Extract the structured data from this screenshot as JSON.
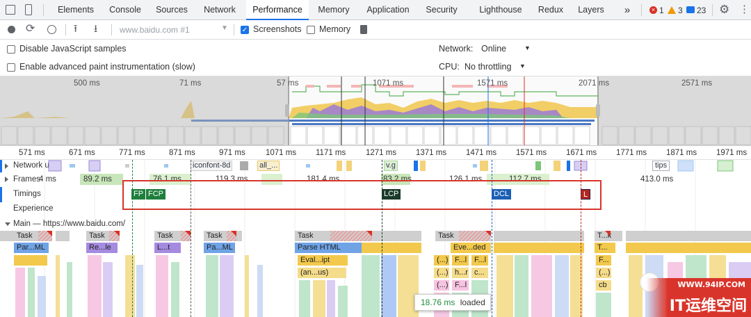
{
  "tabs": [
    "Elements",
    "Console",
    "Sources",
    "Network",
    "Performance",
    "Memory",
    "Application",
    "Security",
    "Lighthouse",
    "Redux",
    "Layers"
  ],
  "active_tab": "Performance",
  "more_tabs": "»",
  "status": {
    "errors": "1",
    "warnings": "3",
    "messages": "23"
  },
  "toolbar": {
    "profile_select": "www.baidu.com #1",
    "screenshots_label": "Screenshots",
    "screenshots_checked": true,
    "memory_label": "Memory",
    "memory_checked": false
  },
  "settings": {
    "disable_js_label": "Disable JavaScript samples",
    "advanced_paint_label": "Enable advanced paint instrumentation (slow)",
    "network_label": "Network:",
    "network_value": "Online",
    "cpu_label": "CPU:",
    "cpu_value": "No throttling"
  },
  "overview": {
    "ticks": [
      "500 ms",
      "71 ms",
      "57 ms",
      "1071 ms",
      "1571 ms",
      "2071 ms",
      "2571 ms"
    ]
  },
  "ruler": [
    "571 ms",
    "671 ms",
    "771 ms",
    "871 ms",
    "971 ms",
    "1071 ms",
    "1171 ms",
    "1271 ms",
    "1371 ms",
    "1471 ms",
    "1571 ms",
    "1671 ms",
    "1771 ms",
    "1871 ms",
    "1971 ms"
  ],
  "tracks": {
    "network": "Network u...",
    "frames": "Frames",
    "timings": "Timings",
    "experience": "Experience",
    "main": "Main — https://www.baidu.com/"
  },
  "network_items": [
    "iconfont-8d",
    "all_...",
    "v.g",
    "tips"
  ],
  "frames": [
    "4 ms",
    "89.2 ms",
    "76.1 ms",
    "119.3 ms",
    "181.4 ms",
    "83.2 ms",
    "126.1 ms",
    "112.7 ms",
    "413.0 ms"
  ],
  "timing_markers": [
    "FP",
    "FCP",
    "LCP",
    "DCL",
    "L"
  ],
  "main_tasks": [
    "Task",
    "Task",
    "Task",
    "Task",
    "Task",
    "Task",
    "T...k"
  ],
  "main_row2": [
    "Par...ML",
    "Re...le",
    "L...t",
    "Pa...ML",
    "Parse HTML",
    "Eve...ded",
    "T..."
  ],
  "main_row3": [
    "Eval...ipt",
    "(...)",
    "F...l",
    "F...l",
    "F..."
  ],
  "main_row4": [
    "(an...us)",
    "(...)",
    "h...r",
    "c...",
    "(...)"
  ],
  "main_row5": [
    "(...)",
    "F...l",
    "cb"
  ],
  "tooltip": {
    "time": "18.76 ms",
    "text": "loaded"
  },
  "watermark": {
    "url": "WWW.94IP.COM",
    "name": "IT运维空间"
  }
}
